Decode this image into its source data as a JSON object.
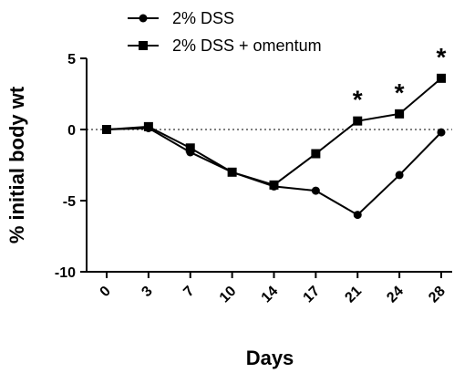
{
  "chart_data": {
    "type": "line",
    "xlabel": "Days",
    "ylabel": "% initial body wt",
    "categories": [
      "0",
      "3",
      "7",
      "10",
      "14",
      "17",
      "21",
      "24",
      "28"
    ],
    "ylim": [
      -10,
      5
    ],
    "yticks": [
      "5",
      "0",
      "-5",
      "-10"
    ],
    "yticks_values": [
      5,
      0,
      -5,
      -10
    ],
    "reference_line": {
      "y": 0,
      "style": "dotted"
    },
    "legend_position": "top-left",
    "series": [
      {
        "name": "2% DSS",
        "marker": "circle",
        "values": [
          0,
          0.1,
          -1.6,
          -3.0,
          -4.0,
          -4.3,
          -6.0,
          -3.2,
          -0.2
        ]
      },
      {
        "name": "2% DSS + omentum",
        "marker": "square",
        "values": [
          0,
          0.2,
          -1.3,
          -3.0,
          -3.9,
          -1.7,
          0.6,
          1.1,
          3.6
        ]
      }
    ],
    "annotations": [
      {
        "text": "*",
        "category": "21"
      },
      {
        "text": "*",
        "category": "24"
      },
      {
        "text": "*",
        "category": "28"
      }
    ],
    "colors": {
      "line": "#000000",
      "background": "#ffffff"
    }
  }
}
